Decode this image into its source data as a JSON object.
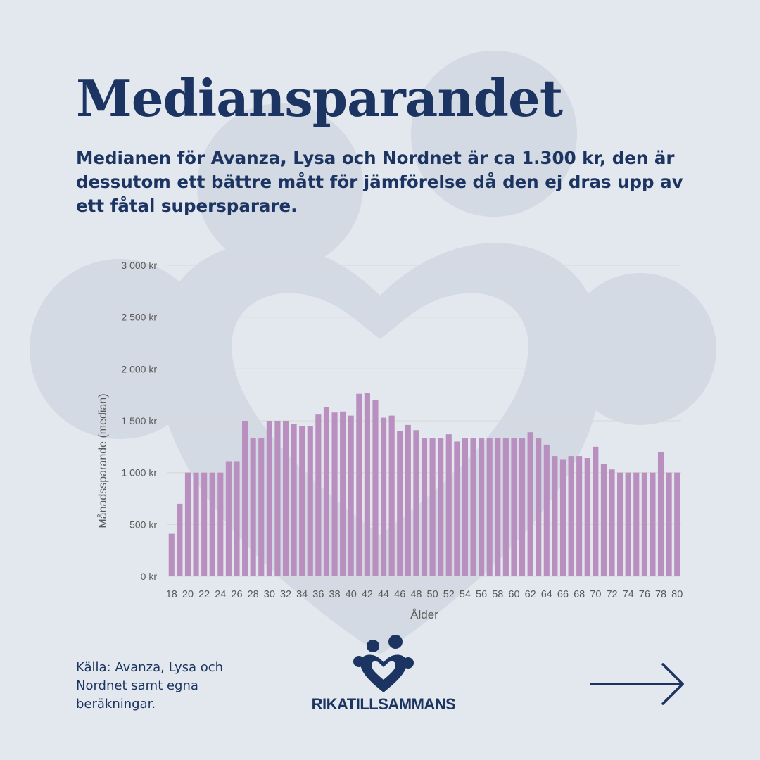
{
  "title": "Mediansparandet",
  "subtitle": "Medianen för Avanza, Lysa och Nordnet är ca 1.300 kr, den är dessutom ett bättre mått för jämförelse då den ej dras upp av ett fåtal supersparare.",
  "source": "Källa: Avanza, Lysa och Nordnet samt egna beräkningar.",
  "brand": {
    "name": "RIKATILLSAMMANS",
    "logo_icon": "two-people-heart-icon"
  },
  "navigation": {
    "next_icon": "arrow-right-icon"
  },
  "colors": {
    "background": "#e3e8ee",
    "text": "#1b3461",
    "bar": "#b98fc0",
    "grid": "#d9d9d9",
    "axis_text": "#595959"
  },
  "chart_data": {
    "type": "bar",
    "xlabel": "Ålder",
    "ylabel": "Månadssparande (median)",
    "ylim": [
      0,
      3000
    ],
    "y_ticks": [
      0,
      500,
      1000,
      1500,
      2000,
      2500,
      3000
    ],
    "y_tick_labels": [
      "0 kr",
      "500 kr",
      "1 000 kr",
      "1 500 kr",
      "2 000 kr",
      "2 500 kr",
      "3 000 kr"
    ],
    "grid": true,
    "categories": [
      18,
      19,
      20,
      21,
      22,
      23,
      24,
      25,
      26,
      27,
      28,
      29,
      30,
      31,
      32,
      33,
      34,
      35,
      36,
      37,
      38,
      39,
      40,
      41,
      42,
      43,
      44,
      45,
      46,
      47,
      48,
      49,
      50,
      51,
      52,
      53,
      54,
      55,
      56,
      57,
      58,
      59,
      60,
      61,
      62,
      63,
      64,
      65,
      66,
      67,
      68,
      69,
      70,
      71,
      72,
      73,
      74,
      75,
      76,
      77,
      78,
      79,
      80
    ],
    "x_tick_labels": [
      "18",
      "20",
      "22",
      "24",
      "26",
      "28",
      "30",
      "32",
      "34",
      "36",
      "38",
      "40",
      "42",
      "44",
      "46",
      "48",
      "50",
      "52",
      "54",
      "56",
      "58",
      "60",
      "62",
      "64",
      "66",
      "68",
      "70",
      "72",
      "74",
      "76",
      "78",
      "80"
    ],
    "values": [
      410,
      700,
      1000,
      1000,
      1000,
      1000,
      1000,
      1110,
      1110,
      1500,
      1330,
      1330,
      1500,
      1500,
      1500,
      1470,
      1450,
      1450,
      1560,
      1630,
      1580,
      1590,
      1550,
      1760,
      1770,
      1700,
      1530,
      1550,
      1400,
      1460,
      1410,
      1330,
      1330,
      1330,
      1370,
      1300,
      1330,
      1330,
      1330,
      1330,
      1330,
      1330,
      1330,
      1330,
      1390,
      1330,
      1270,
      1160,
      1130,
      1160,
      1160,
      1140,
      1250,
      1080,
      1030,
      1000,
      1000,
      1000,
      1000,
      1000,
      1200,
      1000,
      1000
    ]
  }
}
